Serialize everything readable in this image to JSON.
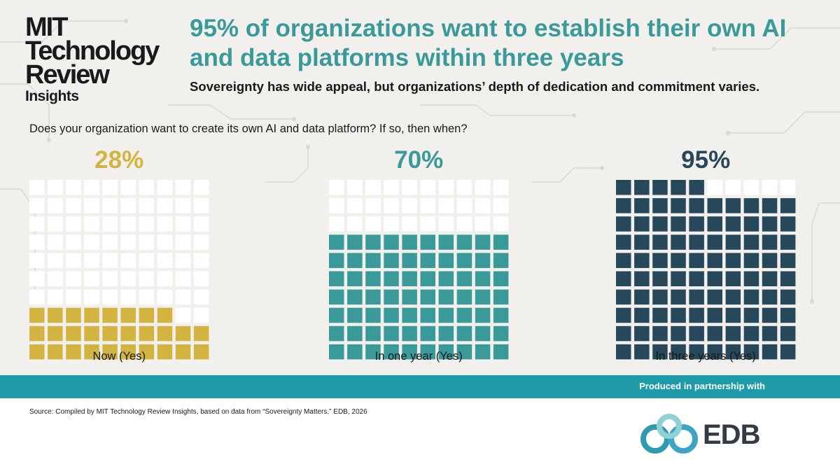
{
  "logo": {
    "line1": "MIT",
    "line2": "Technology",
    "line3": "Review",
    "line4": "Insights"
  },
  "headline": "95% of organizations want to establish their own AI and data platforms within three years",
  "subhead": "Sovereignty has wide appeal, but organizations’ depth of dedication and commitment varies.",
  "question": "Does your organization want to create its own AI and data platform? If so, then when?",
  "chart_data": {
    "type": "waffle",
    "grid": "10x10",
    "unit": "%",
    "series": [
      {
        "name": "Now (Yes)",
        "value": 28,
        "value_label": "28%",
        "color": "#d4b441"
      },
      {
        "name": "In one year (Yes)",
        "value": 70,
        "value_label": "70%",
        "color": "#3a9a9a"
      },
      {
        "name": "In three years (Yes)",
        "value": 95,
        "value_label": "95%",
        "color": "#27475a"
      }
    ]
  },
  "empty_cell_color": "#ffffff",
  "footer": {
    "partner": "Produced in partnership with",
    "source": "Source: Compiled by MIT Technology Review Insights, based on data from “Sovereignty Matters,” EDB, 2026",
    "edb": "EDB"
  },
  "colors": {
    "accent": "#3a9a9a",
    "band": "#1e9aa8",
    "background": "#f1f0ec"
  }
}
